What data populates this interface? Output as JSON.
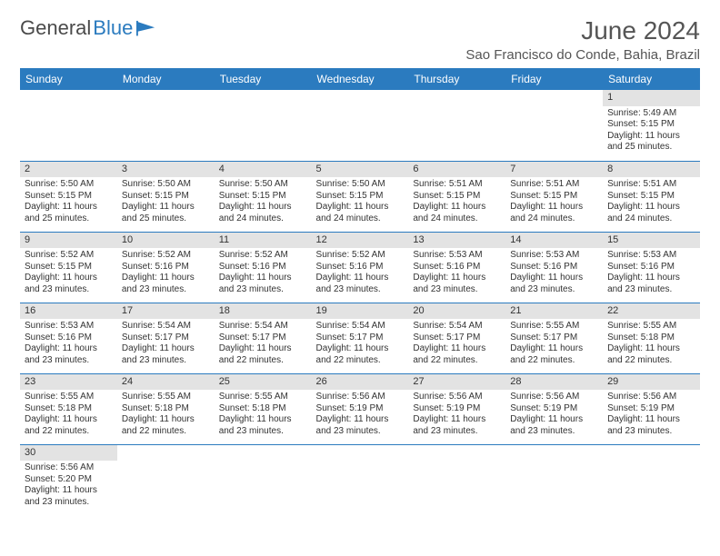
{
  "brand": {
    "name1": "General",
    "name2": "Blue"
  },
  "title": "June 2024",
  "location": "Sao Francisco do Conde, Bahia, Brazil",
  "colors": {
    "header_bg": "#2b7bbf",
    "header_fg": "#ffffff",
    "daynum_bg": "#e3e3e3",
    "row_border": "#2b7bbf",
    "text": "#333333",
    "title_color": "#555555"
  },
  "day_headers": [
    "Sunday",
    "Monday",
    "Tuesday",
    "Wednesday",
    "Thursday",
    "Friday",
    "Saturday"
  ],
  "weeks": [
    [
      null,
      null,
      null,
      null,
      null,
      null,
      {
        "n": "1",
        "sr": "5:49 AM",
        "ss": "5:15 PM",
        "dl": "11 hours and 25 minutes."
      }
    ],
    [
      {
        "n": "2",
        "sr": "5:50 AM",
        "ss": "5:15 PM",
        "dl": "11 hours and 25 minutes."
      },
      {
        "n": "3",
        "sr": "5:50 AM",
        "ss": "5:15 PM",
        "dl": "11 hours and 25 minutes."
      },
      {
        "n": "4",
        "sr": "5:50 AM",
        "ss": "5:15 PM",
        "dl": "11 hours and 24 minutes."
      },
      {
        "n": "5",
        "sr": "5:50 AM",
        "ss": "5:15 PM",
        "dl": "11 hours and 24 minutes."
      },
      {
        "n": "6",
        "sr": "5:51 AM",
        "ss": "5:15 PM",
        "dl": "11 hours and 24 minutes."
      },
      {
        "n": "7",
        "sr": "5:51 AM",
        "ss": "5:15 PM",
        "dl": "11 hours and 24 minutes."
      },
      {
        "n": "8",
        "sr": "5:51 AM",
        "ss": "5:15 PM",
        "dl": "11 hours and 24 minutes."
      }
    ],
    [
      {
        "n": "9",
        "sr": "5:52 AM",
        "ss": "5:15 PM",
        "dl": "11 hours and 23 minutes."
      },
      {
        "n": "10",
        "sr": "5:52 AM",
        "ss": "5:16 PM",
        "dl": "11 hours and 23 minutes."
      },
      {
        "n": "11",
        "sr": "5:52 AM",
        "ss": "5:16 PM",
        "dl": "11 hours and 23 minutes."
      },
      {
        "n": "12",
        "sr": "5:52 AM",
        "ss": "5:16 PM",
        "dl": "11 hours and 23 minutes."
      },
      {
        "n": "13",
        "sr": "5:53 AM",
        "ss": "5:16 PM",
        "dl": "11 hours and 23 minutes."
      },
      {
        "n": "14",
        "sr": "5:53 AM",
        "ss": "5:16 PM",
        "dl": "11 hours and 23 minutes."
      },
      {
        "n": "15",
        "sr": "5:53 AM",
        "ss": "5:16 PM",
        "dl": "11 hours and 23 minutes."
      }
    ],
    [
      {
        "n": "16",
        "sr": "5:53 AM",
        "ss": "5:16 PM",
        "dl": "11 hours and 23 minutes."
      },
      {
        "n": "17",
        "sr": "5:54 AM",
        "ss": "5:17 PM",
        "dl": "11 hours and 23 minutes."
      },
      {
        "n": "18",
        "sr": "5:54 AM",
        "ss": "5:17 PM",
        "dl": "11 hours and 22 minutes."
      },
      {
        "n": "19",
        "sr": "5:54 AM",
        "ss": "5:17 PM",
        "dl": "11 hours and 22 minutes."
      },
      {
        "n": "20",
        "sr": "5:54 AM",
        "ss": "5:17 PM",
        "dl": "11 hours and 22 minutes."
      },
      {
        "n": "21",
        "sr": "5:55 AM",
        "ss": "5:17 PM",
        "dl": "11 hours and 22 minutes."
      },
      {
        "n": "22",
        "sr": "5:55 AM",
        "ss": "5:18 PM",
        "dl": "11 hours and 22 minutes."
      }
    ],
    [
      {
        "n": "23",
        "sr": "5:55 AM",
        "ss": "5:18 PM",
        "dl": "11 hours and 22 minutes."
      },
      {
        "n": "24",
        "sr": "5:55 AM",
        "ss": "5:18 PM",
        "dl": "11 hours and 22 minutes."
      },
      {
        "n": "25",
        "sr": "5:55 AM",
        "ss": "5:18 PM",
        "dl": "11 hours and 23 minutes."
      },
      {
        "n": "26",
        "sr": "5:56 AM",
        "ss": "5:19 PM",
        "dl": "11 hours and 23 minutes."
      },
      {
        "n": "27",
        "sr": "5:56 AM",
        "ss": "5:19 PM",
        "dl": "11 hours and 23 minutes."
      },
      {
        "n": "28",
        "sr": "5:56 AM",
        "ss": "5:19 PM",
        "dl": "11 hours and 23 minutes."
      },
      {
        "n": "29",
        "sr": "5:56 AM",
        "ss": "5:19 PM",
        "dl": "11 hours and 23 minutes."
      }
    ],
    [
      {
        "n": "30",
        "sr": "5:56 AM",
        "ss": "5:20 PM",
        "dl": "11 hours and 23 minutes."
      },
      null,
      null,
      null,
      null,
      null,
      null
    ]
  ],
  "labels": {
    "sunrise": "Sunrise: ",
    "sunset": "Sunset: ",
    "daylight": "Daylight: "
  }
}
